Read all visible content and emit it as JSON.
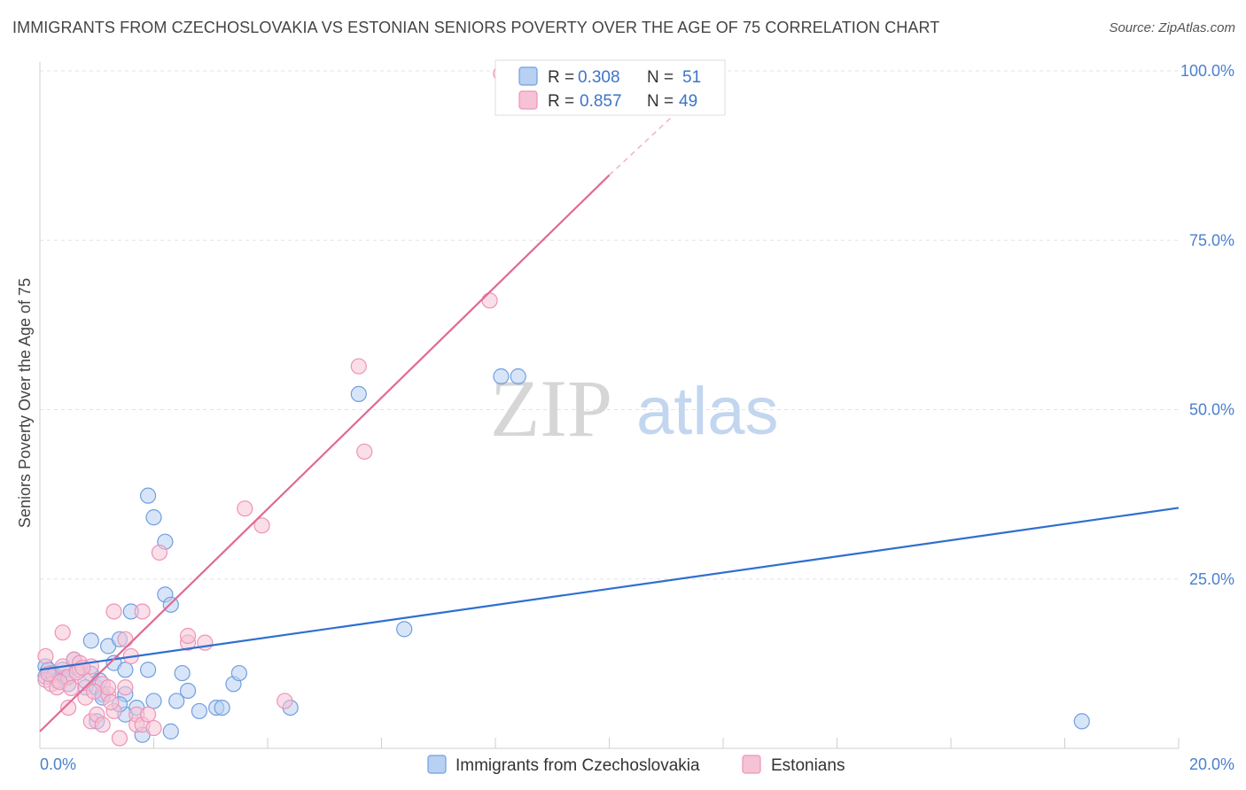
{
  "header": {
    "title": "IMMIGRANTS FROM CZECHOSLOVAKIA VS ESTONIAN SENIORS POVERTY OVER THE AGE OF 75 CORRELATION CHART",
    "source": "Source: ZipAtlas.com"
  },
  "watermark": {
    "zip": "ZIP",
    "atlas": "atlas"
  },
  "legend": {
    "r_label": "R =",
    "n_label": "N =",
    "rows": [
      {
        "r": "0.308",
        "n": "51"
      },
      {
        "r": "0.857",
        "n": "49"
      }
    ]
  },
  "chart_data": {
    "type": "scatter",
    "title": "IMMIGRANTS FROM CZECHOSLOVAKIA VS ESTONIAN SENIORS POVERTY OVER THE AGE OF 75 CORRELATION CHART",
    "xlabel": "",
    "ylabel": "Seniors Poverty Over the Age of 75",
    "xlim": [
      0,
      20
    ],
    "ylim": [
      0,
      100
    ],
    "x_tick_labels": [
      {
        "value": 0,
        "label": "0.0%"
      },
      {
        "value": 20,
        "label": "20.0%"
      }
    ],
    "y_tick_labels": [
      {
        "value": 25,
        "label": "25.0%"
      },
      {
        "value": 50,
        "label": "50.0%"
      },
      {
        "value": 75,
        "label": "75.0%"
      },
      {
        "value": 100,
        "label": "100.0%"
      }
    ],
    "y_gridlines": [
      25,
      50,
      75,
      100
    ],
    "x_gridlines": [
      2,
      4,
      6,
      8,
      10,
      12,
      14,
      16,
      18,
      20
    ],
    "series": [
      {
        "name": "Immigrants from Czechoslovakia",
        "color": "#6f9fe0",
        "line_color": "#2f6fd0",
        "trend": {
          "x0": 0,
          "y0": 11.6,
          "x1": 20,
          "y1": 35.5
        },
        "points": [
          [
            0.1,
            12.1
          ],
          [
            0.1,
            10.6
          ],
          [
            0.2,
            11.1
          ],
          [
            0.3,
            10.0
          ],
          [
            0.4,
            11.6
          ],
          [
            0.5,
            9.5
          ],
          [
            0.6,
            13.1
          ],
          [
            0.7,
            11.6
          ],
          [
            0.8,
            9.0
          ],
          [
            0.9,
            15.9
          ],
          [
            1.0,
            4.0
          ],
          [
            1.0,
            9.0
          ],
          [
            1.1,
            8.0
          ],
          [
            1.1,
            7.5
          ],
          [
            1.2,
            15.1
          ],
          [
            1.3,
            12.6
          ],
          [
            1.4,
            16.1
          ],
          [
            1.5,
            5.0
          ],
          [
            1.5,
            8.0
          ],
          [
            1.4,
            6.5
          ],
          [
            1.5,
            11.6
          ],
          [
            1.6,
            20.2
          ],
          [
            1.7,
            6.0
          ],
          [
            1.8,
            2.0
          ],
          [
            1.9,
            11.6
          ],
          [
            1.9,
            37.3
          ],
          [
            2.0,
            7.0
          ],
          [
            2.0,
            34.1
          ],
          [
            2.2,
            30.5
          ],
          [
            2.2,
            22.7
          ],
          [
            2.3,
            2.5
          ],
          [
            2.3,
            21.2
          ],
          [
            2.4,
            7.0
          ],
          [
            2.5,
            11.1
          ],
          [
            2.6,
            8.5
          ],
          [
            2.8,
            5.5
          ],
          [
            3.1,
            6.0
          ],
          [
            3.2,
            6.0
          ],
          [
            3.4,
            9.5
          ],
          [
            3.5,
            11.1
          ],
          [
            4.4,
            6.0
          ],
          [
            5.6,
            52.3
          ],
          [
            6.4,
            17.6
          ],
          [
            8.1,
            54.9
          ],
          [
            8.4,
            54.9
          ],
          [
            18.3,
            4.0
          ],
          [
            0.15,
            11.6
          ],
          [
            0.45,
            10.5
          ],
          [
            0.9,
            11.0
          ],
          [
            1.05,
            10.0
          ],
          [
            0.25,
            10.8
          ]
        ]
      },
      {
        "name": "Estonians",
        "color": "#ee94b6",
        "line_color": "#e06a96",
        "trend": {
          "x0": 0,
          "y0": 2.5,
          "x1": 10,
          "y1": 84.6
        },
        "trend_dashed": {
          "x0": 10,
          "y0": 84.6,
          "x1": 11.2,
          "y1": 94.0
        },
        "points": [
          [
            0.1,
            13.6
          ],
          [
            0.1,
            10.1
          ],
          [
            0.2,
            9.5
          ],
          [
            0.3,
            9.0
          ],
          [
            0.4,
            12.1
          ],
          [
            0.4,
            17.1
          ],
          [
            0.5,
            6.0
          ],
          [
            0.5,
            10.5
          ],
          [
            0.6,
            13.1
          ],
          [
            0.7,
            12.6
          ],
          [
            0.8,
            7.5
          ],
          [
            0.8,
            10.0
          ],
          [
            0.9,
            4.0
          ],
          [
            0.9,
            12.1
          ],
          [
            1.0,
            5.0
          ],
          [
            1.1,
            9.5
          ],
          [
            1.1,
            3.5
          ],
          [
            1.2,
            8.0
          ],
          [
            1.2,
            9.0
          ],
          [
            1.3,
            5.5
          ],
          [
            1.3,
            20.2
          ],
          [
            1.4,
            1.5
          ],
          [
            1.5,
            16.1
          ],
          [
            1.5,
            9.0
          ],
          [
            1.6,
            13.6
          ],
          [
            1.7,
            3.5
          ],
          [
            1.7,
            5.0
          ],
          [
            1.8,
            3.5
          ],
          [
            1.8,
            20.2
          ],
          [
            1.9,
            5.0
          ],
          [
            2.0,
            3.0
          ],
          [
            2.1,
            28.9
          ],
          [
            2.6,
            15.6
          ],
          [
            2.6,
            16.6
          ],
          [
            2.9,
            15.6
          ],
          [
            3.6,
            35.4
          ],
          [
            3.9,
            32.9
          ],
          [
            4.3,
            7.0
          ],
          [
            5.6,
            56.4
          ],
          [
            5.7,
            43.8
          ],
          [
            7.9,
            66.1
          ],
          [
            8.1,
            99.6
          ],
          [
            0.15,
            11.0
          ],
          [
            0.35,
            9.8
          ],
          [
            0.65,
            11.2
          ],
          [
            0.95,
            8.4
          ],
          [
            1.25,
            6.8
          ],
          [
            0.55,
            8.9
          ],
          [
            0.75,
            11.9
          ]
        ]
      }
    ],
    "legend_placement": "bottom-center"
  },
  "bottom_legend": [
    {
      "label": "Immigrants from Czechoslovakia"
    },
    {
      "label": "Estonians"
    }
  ],
  "colors": {
    "blue_fill": "#b8d0f2",
    "blue_stroke": "#6f9fe0",
    "pink_fill": "#f6c2d5",
    "pink_stroke": "#ee94b6",
    "grid": "#e3e3e3",
    "axis_text": "#4a7fcf"
  }
}
